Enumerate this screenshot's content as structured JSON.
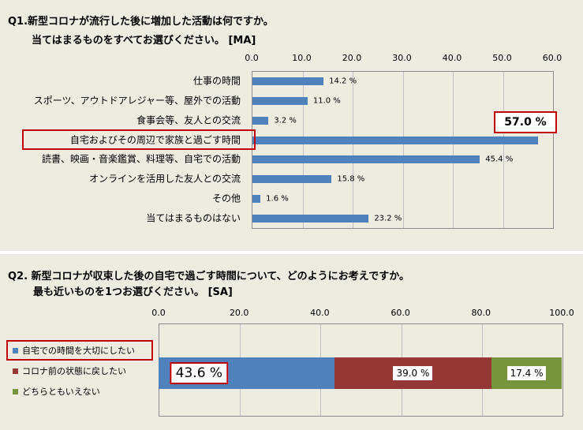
{
  "q1": {
    "title_line1": "Q1.新型コロナが流行した後に増加した活動は何ですか。",
    "title_line2": "当てはまるものをすべてお選びください。 [MA]",
    "highlight_value": "57.0 %"
  },
  "q2": {
    "title_line1": "Q2. 新型コロナが収束した後の自宅で過ごす時間について、どのようにお考えですか。",
    "title_line2": "最も近いものを1つお選びください。 [SA]"
  },
  "chart_data": [
    {
      "type": "bar",
      "orientation": "horizontal",
      "xlim": [
        0,
        60
      ],
      "xticks": [
        "0.0",
        "10.0",
        "20.0",
        "30.0",
        "40.0",
        "50.0",
        "60.0"
      ],
      "categories": [
        "仕事の時間",
        "スポーツ、アウトドアレジャー等、屋外での活動",
        "食事会等、友人との交流",
        "自宅およびその周辺で家族と過ごす時間",
        "読書、映画・音楽鑑賞、料理等、自宅での活動",
        "オンラインを活用した友人との交流",
        "その他",
        "当てはまるものはない"
      ],
      "values": [
        14.2,
        11.0,
        3.2,
        57.0,
        45.4,
        15.8,
        1.6,
        23.2
      ],
      "value_labels": [
        "14.2 %",
        "11.0 %",
        "3.2 %",
        "",
        "45.4 %",
        "15.8 %",
        "1.6 %",
        "23.2 %"
      ],
      "highlighted_category": "自宅およびその周辺で家族と過ごす時間",
      "bar_color": "#4f81bd",
      "grid": true
    },
    {
      "type": "bar",
      "orientation": "horizontal",
      "stacked": true,
      "xlim": [
        0,
        100
      ],
      "xticks": [
        "0.0",
        "20.0",
        "40.0",
        "60.0",
        "80.0",
        "100.0"
      ],
      "series": [
        {
          "name": "自宅での時間を大切にしたい",
          "value": 43.6,
          "label": "43.6 %",
          "color": "#4f81bd"
        },
        {
          "name": "コロナ前の状態に戻したい",
          "value": 39.0,
          "label": "39.0 %",
          "color": "#953735"
        },
        {
          "name": "どちらともいえない",
          "value": 17.4,
          "label": "17.4 %",
          "color": "#77933c"
        }
      ],
      "legend": "left",
      "grid": true
    }
  ]
}
